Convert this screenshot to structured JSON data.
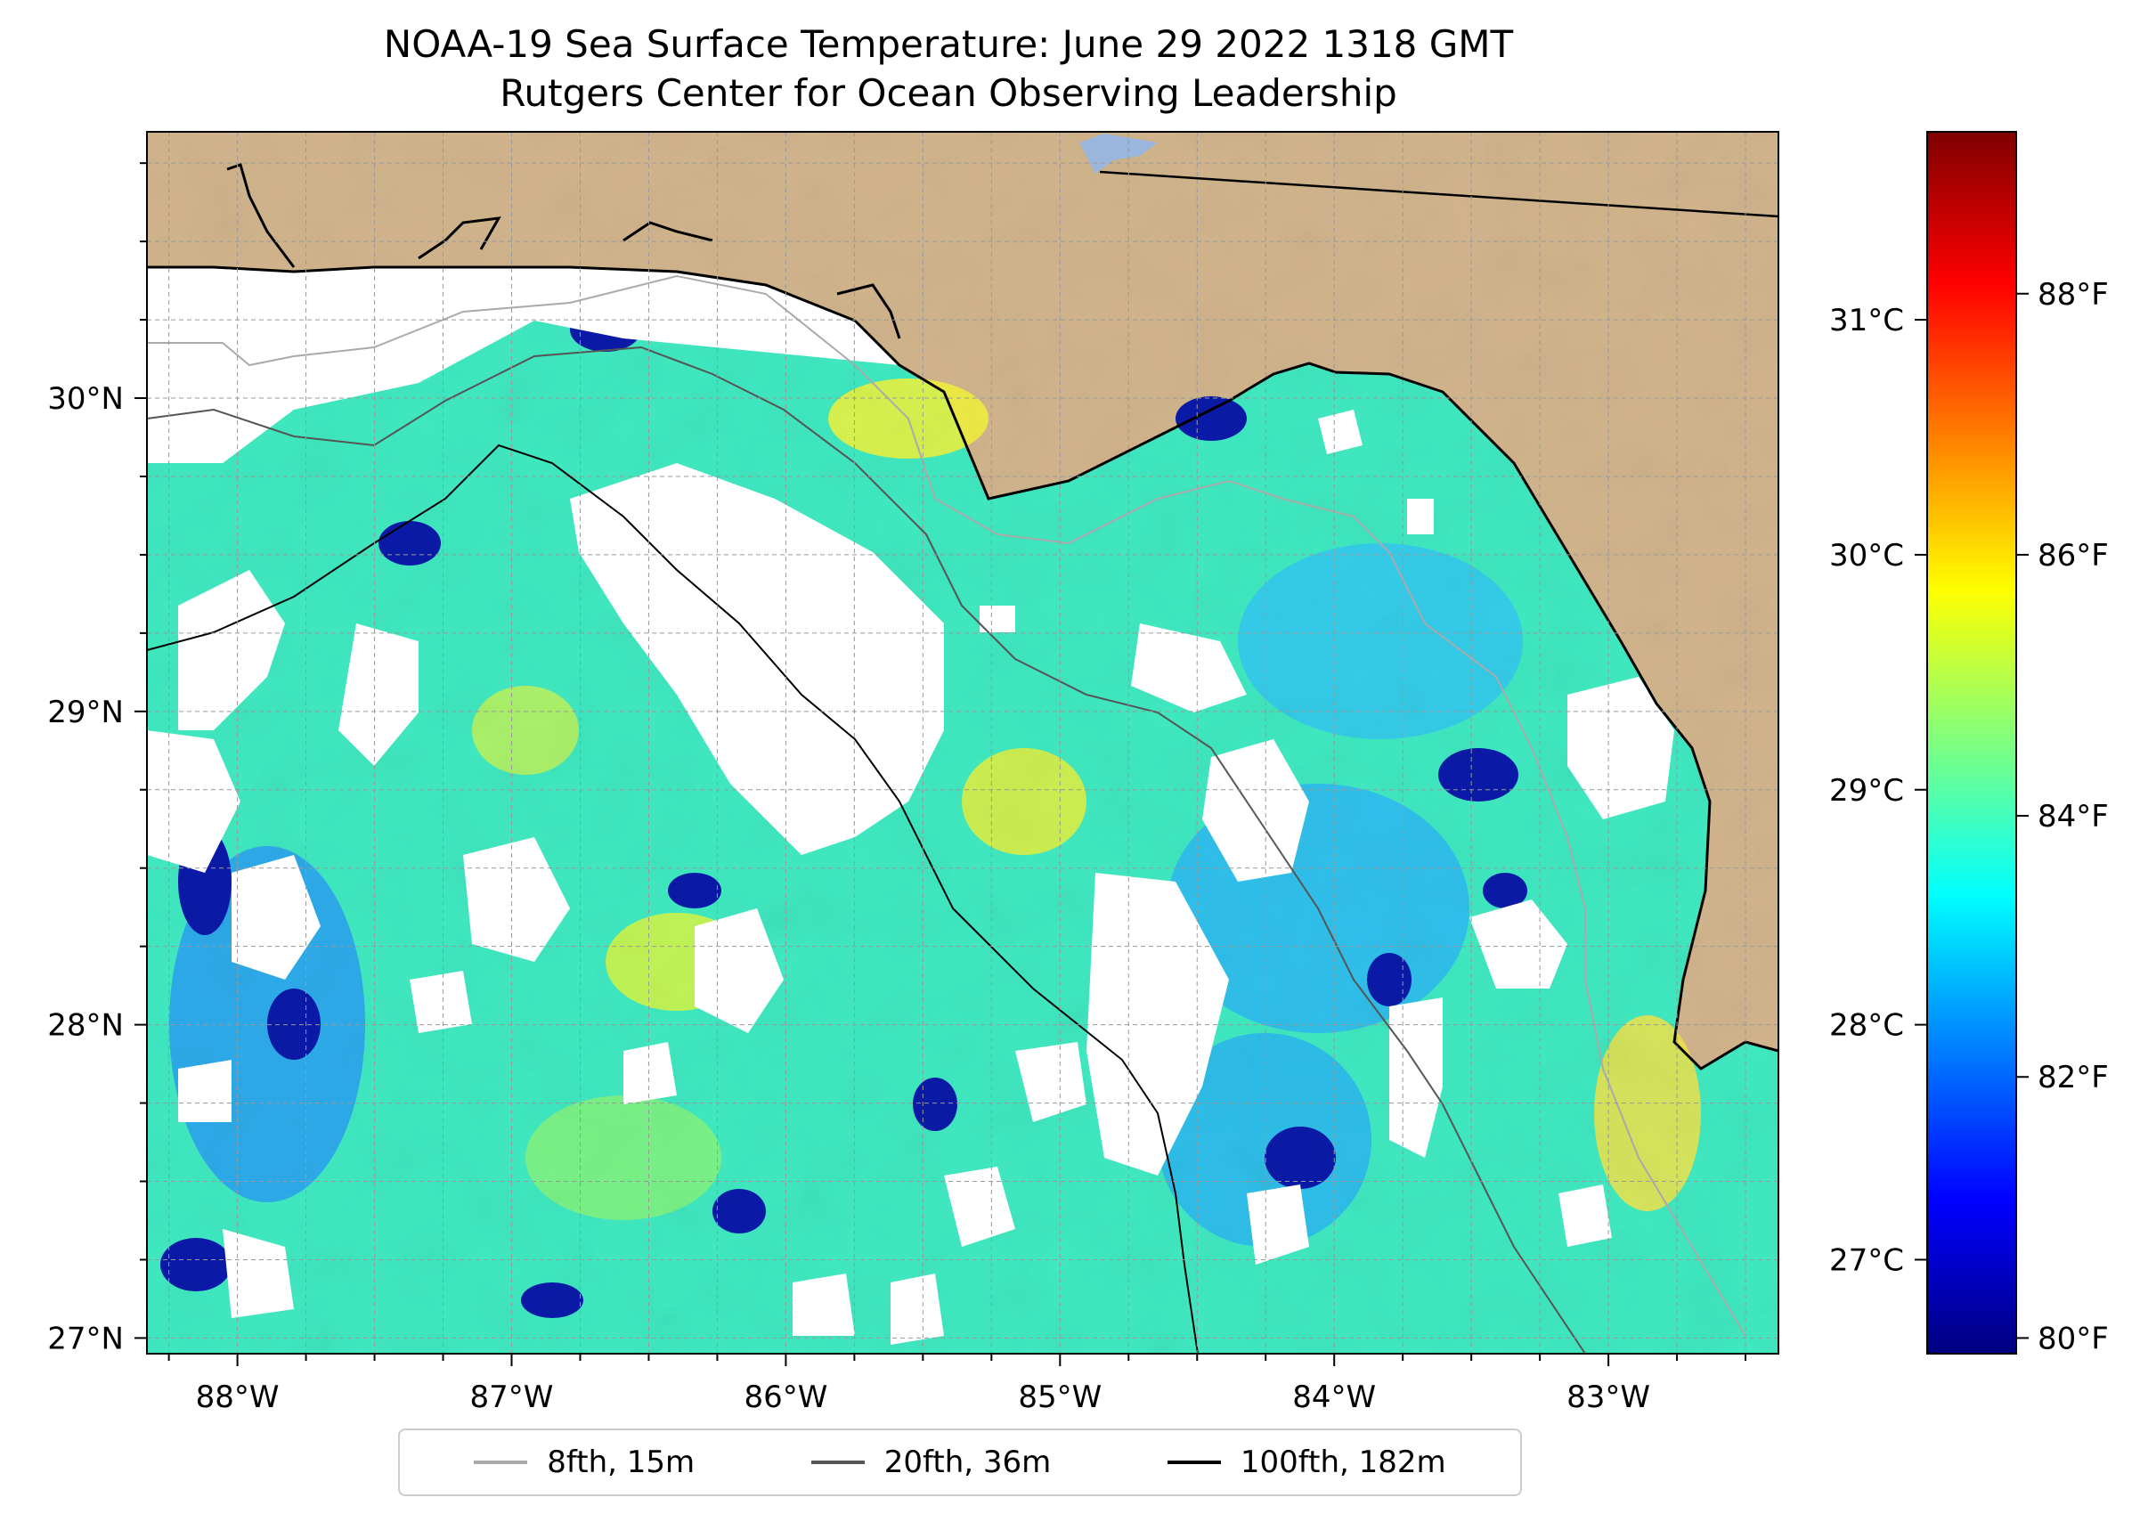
{
  "title": {
    "line1": "NOAA-19 Sea Surface Temperature: June 29 2022 1318 GMT",
    "line2": "Rutgers Center for Ocean Observing Leadership"
  },
  "map": {
    "lon_range": [
      -88.33,
      -82.38
    ],
    "lat_range": [
      26.95,
      30.85
    ],
    "lat_ticks": [
      {
        "value": 30,
        "label": "30°N"
      },
      {
        "value": 29,
        "label": "29°N"
      },
      {
        "value": 28,
        "label": "28°N"
      },
      {
        "value": 27,
        "label": "27°N"
      }
    ],
    "lon_ticks": [
      {
        "value": -88,
        "label": "88°W"
      },
      {
        "value": -87,
        "label": "87°W"
      },
      {
        "value": -86,
        "label": "86°W"
      },
      {
        "value": -85,
        "label": "85°W"
      },
      {
        "value": -84,
        "label": "84°W"
      },
      {
        "value": -83,
        "label": "83°W"
      }
    ],
    "colors": {
      "land": "#d1b48c",
      "ocean_no_data": "#ffffff",
      "coast": "#000000",
      "grid": "#999999",
      "lake": "#9bb6dc"
    }
  },
  "colorbar": {
    "colormap": "jet",
    "celsius_range": [
      26.6,
      31.8
    ],
    "celsius_ticks": [
      {
        "value": 31,
        "label": "31°C"
      },
      {
        "value": 30,
        "label": "30°C"
      },
      {
        "value": 29,
        "label": "29°C"
      },
      {
        "value": 28,
        "label": "28°C"
      },
      {
        "value": 27,
        "label": "27°C"
      }
    ],
    "fahrenheit_ticks": [
      {
        "value": 88,
        "label": "88°F"
      },
      {
        "value": 86,
        "label": "86°F"
      },
      {
        "value": 84,
        "label": "84°F"
      },
      {
        "value": 82,
        "label": "82°F"
      },
      {
        "value": 80,
        "label": "80°F"
      }
    ]
  },
  "legend": {
    "items": [
      {
        "label": "8fth, 15m",
        "color": "#aaaaaa"
      },
      {
        "label": "20fth, 36m",
        "color": "#555555"
      },
      {
        "label": "100fth, 182m",
        "color": "#000000"
      }
    ]
  }
}
